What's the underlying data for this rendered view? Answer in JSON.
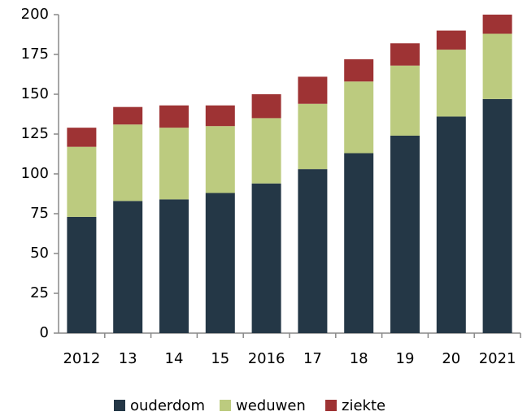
{
  "chart_data": {
    "type": "stacked_bar",
    "categories": [
      "2012",
      "13",
      "14",
      "15",
      "2016",
      "17",
      "18",
      "19",
      "20",
      "2021"
    ],
    "series": [
      {
        "name": "ouderdom",
        "color": "#243746",
        "values": [
          73,
          83,
          84,
          88,
          94,
          103,
          113,
          124,
          136,
          147
        ]
      },
      {
        "name": "weduwen",
        "color": "#bccb7f",
        "values": [
          44,
          48,
          45,
          42,
          41,
          41,
          45,
          44,
          42,
          41
        ]
      },
      {
        "name": "ziekte",
        "color": "#9e3334",
        "values": [
          12,
          11,
          14,
          13,
          15,
          17,
          14,
          14,
          12,
          12
        ]
      }
    ],
    "ylim": [
      0,
      200
    ],
    "yticks": [
      0,
      25,
      50,
      75,
      100,
      125,
      150,
      175,
      200
    ],
    "grid": false,
    "legend": "bottom"
  }
}
